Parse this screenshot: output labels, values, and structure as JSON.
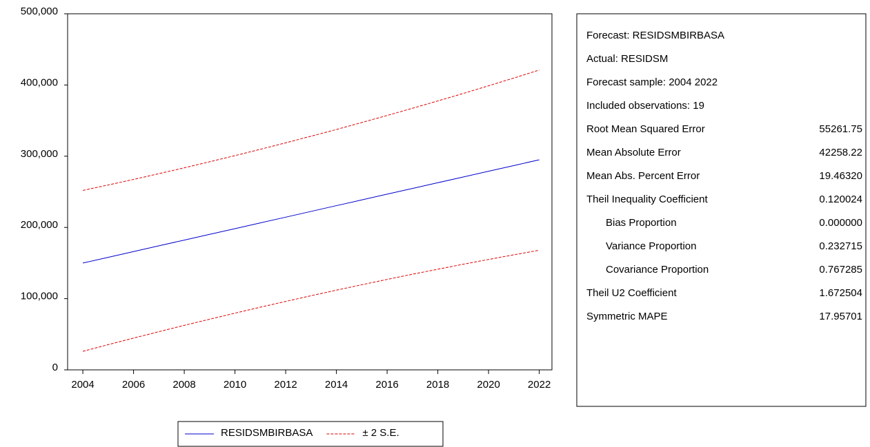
{
  "chart_data": {
    "type": "line",
    "x": [
      2004,
      2005,
      2006,
      2007,
      2008,
      2009,
      2010,
      2011,
      2012,
      2013,
      2014,
      2015,
      2016,
      2017,
      2018,
      2019,
      2020,
      2021,
      2022
    ],
    "series": [
      {
        "name": "RESIDSMBIRBASA",
        "color": "#0000cc",
        "dash": false,
        "values": [
          150000,
          158000,
          166100,
          174200,
          182200,
          190300,
          198300,
          206400,
          214400,
          222500,
          230600,
          238600,
          246700,
          254700,
          262800,
          270800,
          278900,
          286900,
          295000
        ]
      },
      {
        "name": "± 2 S.E.",
        "color": "#dd0000",
        "dash": true,
        "values": [
          252000,
          259600,
          267400,
          275500,
          283700,
          292200,
          300800,
          309700,
          318800,
          328100,
          337500,
          347300,
          357200,
          367300,
          377600,
          388100,
          398900,
          409800,
          421000
        ]
      },
      {
        "color": "#dd0000",
        "dash": true,
        "values": [
          26000,
          35400,
          44600,
          53600,
          62500,
          71100,
          79600,
          88000,
          96100,
          104100,
          111900,
          119500,
          127000,
          134300,
          141300,
          148300,
          155000,
          161600,
          168000
        ]
      }
    ],
    "xlim": [
      2003.4,
      2022.5
    ],
    "xticks": [
      2004,
      2006,
      2008,
      2010,
      2012,
      2014,
      2016,
      2018,
      2020,
      2022
    ],
    "ylim": [
      0,
      500000
    ],
    "yticks": [
      0,
      {
        "value": 100000,
        "label": "100,000"
      },
      {
        "value": 200000,
        "label": "200,000"
      },
      {
        "value": 300000,
        "label": "300,000"
      },
      {
        "value": 400000,
        "label": "400,000"
      },
      {
        "value": 500000,
        "label": "500,000"
      }
    ]
  },
  "stats": {
    "header": [
      "Forecast: RESIDSMBIRBASA",
      "Actual: RESIDSM",
      "Forecast sample: 2004 2022",
      "Included observations: 19"
    ],
    "rows": [
      {
        "label": "Root Mean Squared Error",
        "value": "55261.75"
      },
      {
        "label": "Mean Absolute Error",
        "value": "42258.22"
      },
      {
        "label": "Mean Abs. Percent Error",
        "value": "19.46320"
      },
      {
        "label": "Theil Inequality Coefficient",
        "value": "0.120024"
      },
      {
        "label": "Bias Proportion",
        "value": "0.000000"
      },
      {
        "label": "Variance Proportion",
        "value": "0.232715"
      },
      {
        "label": "Covariance Proportion",
        "value": "0.767285"
      },
      {
        "label": "Theil U2 Coefficient",
        "value": "1.672504"
      },
      {
        "label": "Symmetric MAPE",
        "value": "17.95701"
      }
    ]
  }
}
